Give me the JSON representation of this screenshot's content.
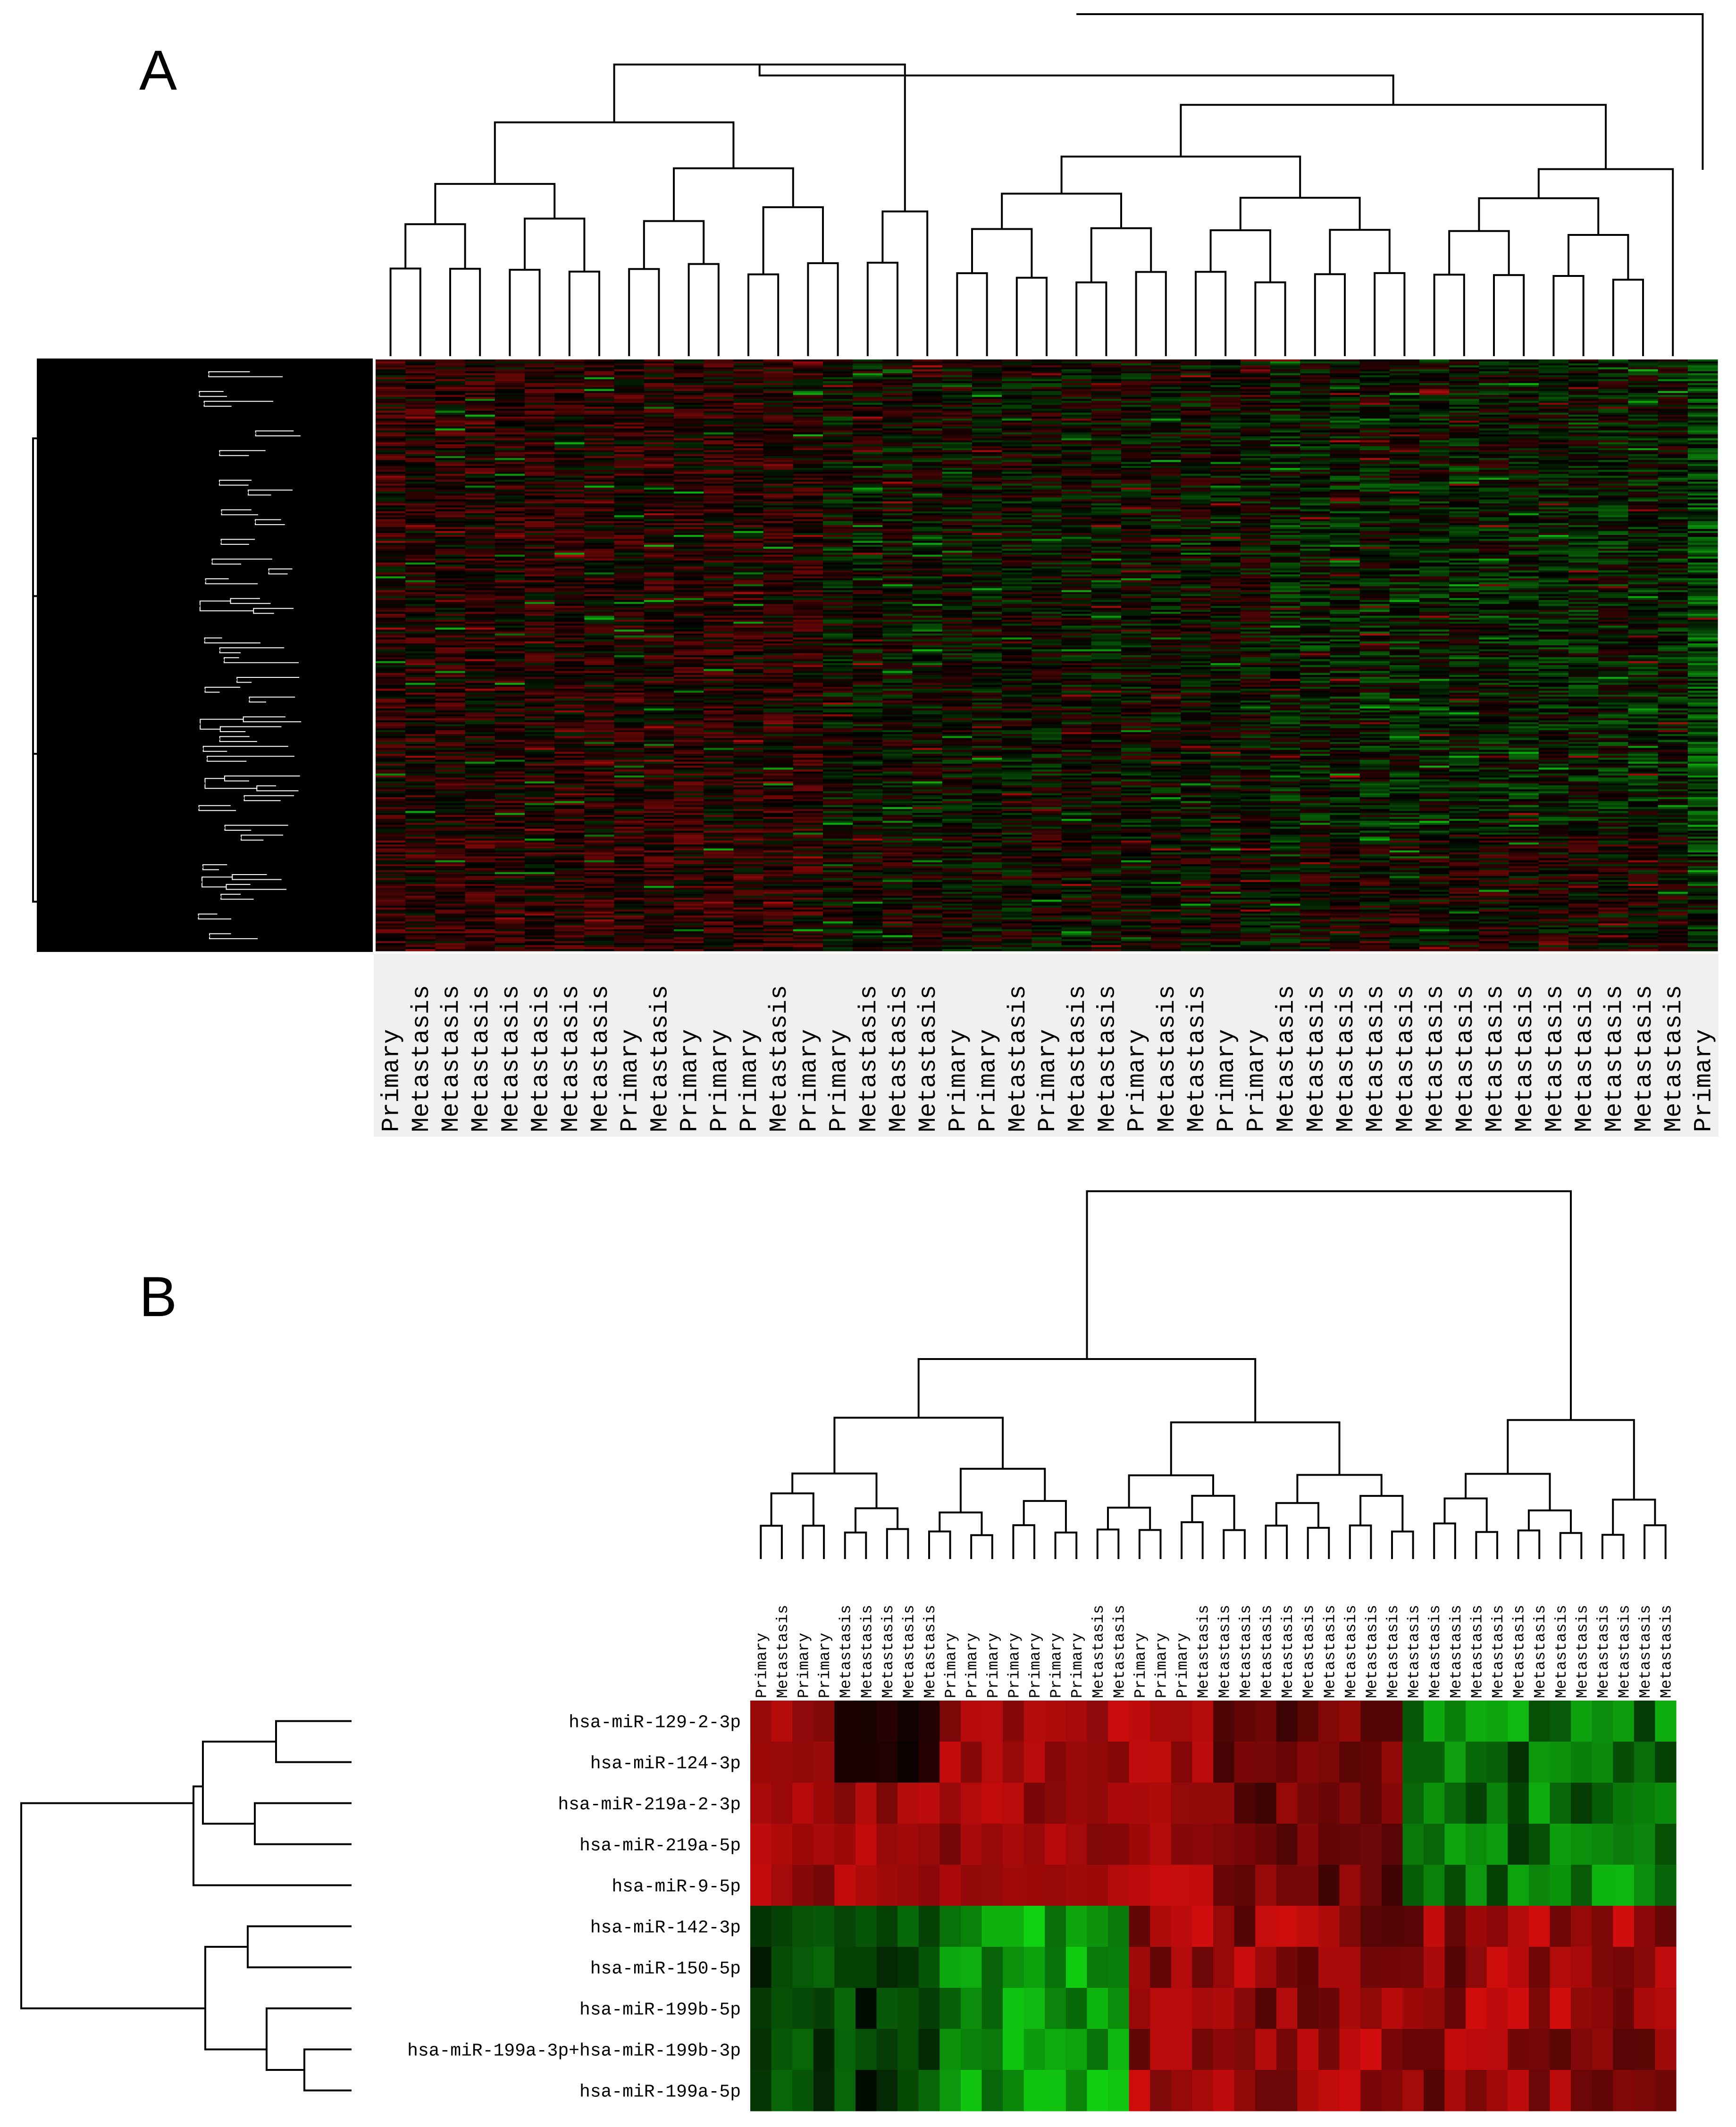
{
  "chart_data": [
    {
      "panel": "A",
      "type": "heatmap",
      "columns": [
        "Primary",
        "Metastasis",
        "Metastasis",
        "Metastasis",
        "Metastasis",
        "Metastasis",
        "Metastasis",
        "Metastasis",
        "Primary",
        "Metastasis",
        "Primary",
        "Primary",
        "Primary",
        "Metastasis",
        "Primary",
        "Primary",
        "Metastasis",
        "Metastasis",
        "Metastasis",
        "Primary",
        "Primary",
        "Metastasis",
        "Primary",
        "Metastasis",
        "Metastasis",
        "Primary",
        "Metastasis",
        "Metastasis",
        "Primary",
        "Primary",
        "Metastasis",
        "Metastasis",
        "Metastasis",
        "Metastasis",
        "Metastasis",
        "Metastasis",
        "Metastasis",
        "Metastasis",
        "Metastasis",
        "Metastasis",
        "Metastasis",
        "Metastasis",
        "Metastasis",
        "Metastasis",
        "Primary"
      ],
      "row_count": 300,
      "colors": {
        "high": "#ff2020",
        "low": "#20ff20",
        "mid": "#000000"
      }
    },
    {
      "panel": "B",
      "type": "heatmap",
      "columns": [
        "Primary",
        "Metastasis",
        "Primary",
        "Primary",
        "Metastasis",
        "Metastasis",
        "Metastasis",
        "Metastasis",
        "Metastasis",
        "Primary",
        "Primary",
        "Primary",
        "Primary",
        "Primary",
        "Primary",
        "Primary",
        "Metastasis",
        "Metastasis",
        "Primary",
        "Primary",
        "Primary",
        "Metastasis",
        "Metastasis",
        "Metastasis",
        "Metastasis",
        "Metastasis",
        "Metastasis",
        "Metastasis",
        "Metastasis",
        "Metastasis",
        "Metastasis",
        "Metastasis",
        "Metastasis",
        "Metastasis",
        "Metastasis",
        "Metastasis",
        "Metastasis",
        "Metastasis",
        "Metastasis",
        "Metastasis",
        "Metastasis",
        "Metastasis",
        "Metastasis",
        "Metastasis"
      ],
      "rows": [
        "hsa-miR-129-2-3p",
        "hsa-miR-124-3p",
        "hsa-miR-219a-2-3p",
        "hsa-miR-219a-5p",
        "hsa-miR-9-5p",
        "hsa-miR-142-3p",
        "hsa-miR-150-5p",
        "hsa-miR-199b-5p",
        "hsa-miR-199a-3p+hsa-miR-199b-3p",
        "hsa-miR-199a-5p"
      ],
      "colors": {
        "high": "#ff2020",
        "low": "#20ff20",
        "mid": "#000000"
      }
    }
  ],
  "panels": {
    "a": {
      "letter": "A"
    },
    "b": {
      "letter": "B"
    }
  }
}
